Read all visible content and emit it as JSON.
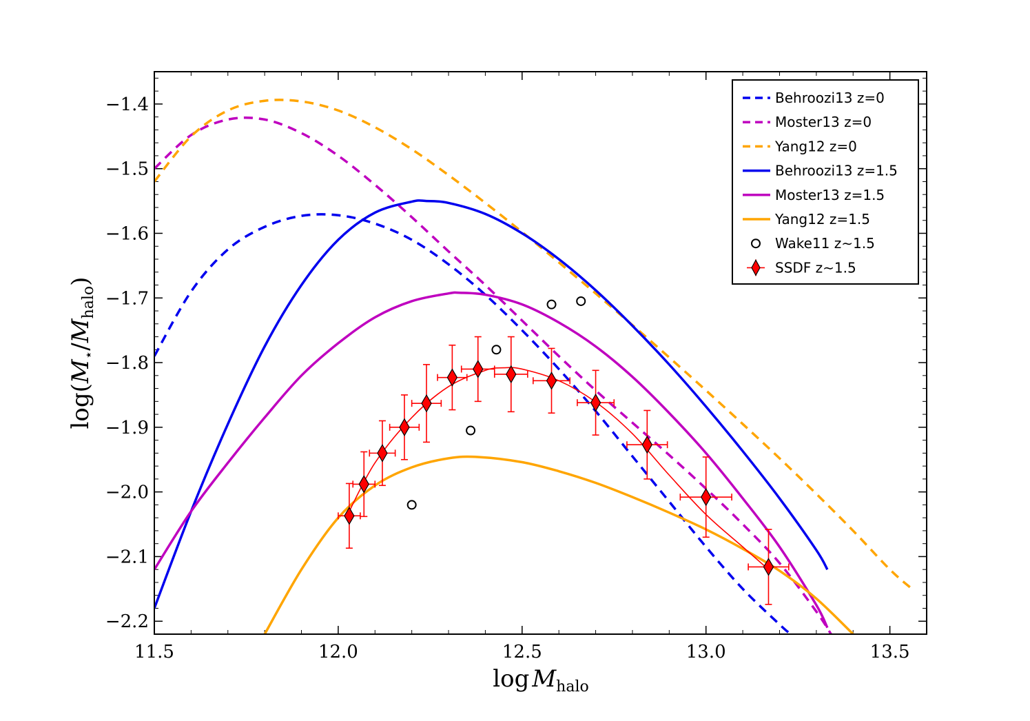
{
  "chart_data": {
    "type": "line",
    "title": "",
    "xlabel": {
      "base": "log",
      "var": "M",
      "sub": "halo"
    },
    "ylabel": {
      "prefix": "log(",
      "num": "M",
      "num_sub": "⋆",
      "slash": "/",
      "den": "M",
      "den_sub": "halo",
      "suffix": ")"
    },
    "xlim": [
      11.5,
      13.6
    ],
    "ylim": [
      -2.22,
      -1.35
    ],
    "x_ticks": [
      11.5,
      12.0,
      12.5,
      13.0,
      13.5
    ],
    "x_tick_labels": [
      "11.5",
      "12.0",
      "12.5",
      "13.0",
      "13.5"
    ],
    "y_ticks": [
      -1.4,
      -1.5,
      -1.6,
      -1.7,
      -1.8,
      -1.9,
      -2.0,
      -2.1,
      -2.2
    ],
    "y_tick_labels": [
      "−1.4",
      "−1.5",
      "−1.6",
      "−1.7",
      "−1.8",
      "−1.9",
      "−2.0",
      "−2.1",
      "−2.2"
    ],
    "legend_position": "top-right",
    "series": [
      {
        "name": "Behroozi13 z=0",
        "style": "dashed",
        "color": "#0000ee",
        "x": [
          11.5,
          11.6,
          11.7,
          11.8,
          11.9,
          12.0,
          12.1,
          12.2,
          12.3,
          12.4,
          12.5,
          12.6,
          12.7,
          12.8,
          12.9,
          13.0,
          13.1,
          13.2,
          13.23
        ],
        "y": [
          -1.79,
          -1.69,
          -1.625,
          -1.59,
          -1.573,
          -1.572,
          -1.585,
          -1.61,
          -1.648,
          -1.695,
          -1.75,
          -1.81,
          -1.875,
          -1.945,
          -2.015,
          -2.085,
          -2.15,
          -2.205,
          -2.22
        ]
      },
      {
        "name": "Moster13 z=0",
        "style": "dashed",
        "color": "#bf00bf",
        "x": [
          11.5,
          11.6,
          11.7,
          11.8,
          11.9,
          12.0,
          12.1,
          12.2,
          12.3,
          12.4,
          12.5,
          12.6,
          12.7,
          12.8,
          12.9,
          13.0,
          13.1,
          13.2,
          13.3,
          13.34
        ],
        "y": [
          -1.5,
          -1.448,
          -1.424,
          -1.424,
          -1.445,
          -1.48,
          -1.525,
          -1.575,
          -1.628,
          -1.68,
          -1.735,
          -1.79,
          -1.843,
          -1.893,
          -1.943,
          -1.995,
          -2.05,
          -2.11,
          -2.185,
          -2.22
        ]
      },
      {
        "name": "Yang12 z=0",
        "style": "dashed",
        "color": "#ffa500",
        "x": [
          11.5,
          11.6,
          11.7,
          11.8,
          11.9,
          12.0,
          12.1,
          12.2,
          12.3,
          12.4,
          12.5,
          12.6,
          12.7,
          12.8,
          12.9,
          13.0,
          13.1,
          13.2,
          13.3,
          13.4,
          13.5,
          13.56
        ],
        "y": [
          -1.52,
          -1.45,
          -1.41,
          -1.395,
          -1.396,
          -1.41,
          -1.436,
          -1.47,
          -1.51,
          -1.553,
          -1.598,
          -1.645,
          -1.693,
          -1.742,
          -1.792,
          -1.843,
          -1.895,
          -1.948,
          -2.003,
          -2.06,
          -2.12,
          -2.15
        ]
      },
      {
        "name": "Behroozi13 z=1.5",
        "style": "solid",
        "color": "#0000ee",
        "x": [
          11.5,
          11.6,
          11.7,
          11.8,
          11.9,
          12.0,
          12.1,
          12.2,
          12.24,
          12.3,
          12.4,
          12.5,
          12.6,
          12.7,
          12.8,
          12.9,
          13.0,
          13.1,
          13.2,
          13.3,
          13.33
        ],
        "y": [
          -2.18,
          -2.03,
          -1.895,
          -1.775,
          -1.68,
          -1.61,
          -1.568,
          -1.551,
          -1.55,
          -1.553,
          -1.57,
          -1.6,
          -1.64,
          -1.688,
          -1.743,
          -1.803,
          -1.868,
          -1.937,
          -2.01,
          -2.09,
          -2.12
        ]
      },
      {
        "name": "Moster13 z=1.5",
        "style": "solid",
        "color": "#bf00bf",
        "x": [
          11.5,
          11.6,
          11.7,
          11.8,
          11.9,
          12.0,
          12.1,
          12.2,
          12.3,
          12.33,
          12.4,
          12.5,
          12.6,
          12.7,
          12.8,
          12.9,
          13.0,
          13.1,
          13.2,
          13.3,
          13.33
        ],
        "y": [
          -2.12,
          -2.03,
          -1.955,
          -1.885,
          -1.82,
          -1.77,
          -1.73,
          -1.705,
          -1.693,
          -1.692,
          -1.695,
          -1.71,
          -1.738,
          -1.775,
          -1.822,
          -1.878,
          -1.94,
          -2.01,
          -2.085,
          -2.175,
          -2.21
        ]
      },
      {
        "name": "Yang12 z=1.5",
        "style": "solid",
        "color": "#ffa500",
        "x": [
          11.8,
          11.9,
          12.0,
          12.1,
          12.2,
          12.3,
          12.38,
          12.5,
          12.6,
          12.7,
          12.8,
          12.9,
          13.0,
          13.1,
          13.2,
          13.3,
          13.4
        ],
        "y": [
          -2.22,
          -2.12,
          -2.04,
          -1.99,
          -1.962,
          -1.948,
          -1.946,
          -1.954,
          -1.968,
          -1.986,
          -2.008,
          -2.032,
          -2.058,
          -2.088,
          -2.122,
          -2.165,
          -2.22
        ]
      },
      {
        "name": "SSDF fit",
        "style": "solid",
        "color": "#ff0000",
        "thin": true,
        "x": [
          12.03,
          12.1,
          12.2,
          12.3,
          12.4,
          12.45,
          12.5,
          12.6,
          12.7,
          12.8,
          12.9,
          13.0,
          13.1,
          13.17
        ],
        "y": [
          -2.03,
          -1.955,
          -1.885,
          -1.837,
          -1.812,
          -1.808,
          -1.81,
          -1.828,
          -1.861,
          -1.91,
          -1.974,
          -2.035,
          -2.085,
          -2.12
        ]
      }
    ],
    "scatter": {
      "name": "Wake11 z~1.5",
      "marker": "circle",
      "x": [
        12.2,
        12.36,
        12.43,
        12.58,
        12.66
      ],
      "y": [
        -2.02,
        -1.905,
        -1.78,
        -1.71,
        -1.705
      ]
    },
    "errorbars": {
      "name": "SSDF z~1.5",
      "marker": "diamond",
      "color": "#ff0000",
      "x": [
        12.03,
        12.07,
        12.12,
        12.18,
        12.24,
        12.31,
        12.38,
        12.47,
        12.58,
        12.7,
        12.84,
        13.0,
        13.17
      ],
      "y": [
        -2.037,
        -1.988,
        -1.94,
        -1.9,
        -1.863,
        -1.823,
        -1.81,
        -1.818,
        -1.828,
        -1.862,
        -1.927,
        -2.008,
        -2.116
      ],
      "xerr": [
        0.03,
        0.03,
        0.035,
        0.04,
        0.04,
        0.04,
        0.045,
        0.045,
        0.05,
        0.05,
        0.055,
        0.07,
        0.055
      ],
      "yerr": [
        0.05,
        0.05,
        0.05,
        0.05,
        0.06,
        0.05,
        0.05,
        0.058,
        0.05,
        0.05,
        0.053,
        0.062,
        0.058
      ]
    },
    "legend": [
      {
        "label": "Behroozi13 z=0",
        "kind": "dashed",
        "color": "#0000ee"
      },
      {
        "label": "Moster13 z=0",
        "kind": "dashed",
        "color": "#bf00bf"
      },
      {
        "label": "Yang12 z=0",
        "kind": "dashed",
        "color": "#ffa500"
      },
      {
        "label": "Behroozi13 z=1.5",
        "kind": "solid",
        "color": "#0000ee"
      },
      {
        "label": "Moster13 z=1.5",
        "kind": "solid",
        "color": "#bf00bf"
      },
      {
        "label": "Yang12 z=1.5",
        "kind": "solid",
        "color": "#ffa500"
      },
      {
        "label": "Wake11 z∼1.5",
        "kind": "circle",
        "color": "#000000"
      },
      {
        "label": "SSDF z∼1.5",
        "kind": "diamond",
        "color": "#ff0000"
      }
    ]
  }
}
